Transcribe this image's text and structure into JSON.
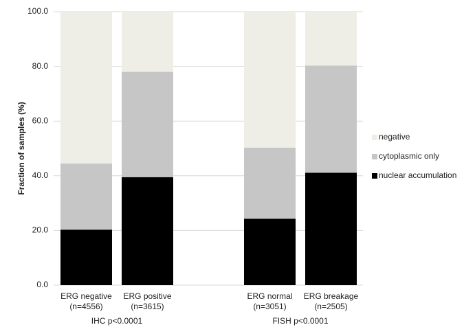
{
  "chart_data": {
    "type": "stacked-bar",
    "ylabel": "Fraction of samples (%)",
    "categories": [
      [
        "ERG negative",
        "(n=4556)"
      ],
      [
        "ERG positive",
        "(n=3615)"
      ],
      null,
      [
        "ERG normal",
        "(n=3051)"
      ],
      [
        "ERG breakage",
        "(n=2505)"
      ]
    ],
    "group_labels": [
      "IHC p<0.0001",
      "FISH p<0.0001"
    ],
    "series": [
      {
        "name": "nuclear accumulation",
        "color": "#000000",
        "values": [
          20.3,
          39.5,
          null,
          24.3,
          41.1
        ]
      },
      {
        "name": "cytoplasmic only",
        "color": "#c6c6c6",
        "values": [
          24.2,
          38.5,
          null,
          26.0,
          39.2
        ]
      },
      {
        "name": "negative",
        "color": "#eeeee6",
        "values": [
          55.5,
          22.0,
          null,
          49.7,
          19.7
        ]
      }
    ],
    "ylim": [
      0,
      100
    ],
    "yticks": [
      {
        "value": 0,
        "label": "0.0"
      },
      {
        "value": 20,
        "label": "20.0"
      },
      {
        "value": 40,
        "label": "40.0"
      },
      {
        "value": 60,
        "label": "60.0"
      },
      {
        "value": 80,
        "label": "80.0"
      },
      {
        "value": 100,
        "label": "100.0"
      }
    ],
    "grid": true,
    "legend": "right"
  }
}
